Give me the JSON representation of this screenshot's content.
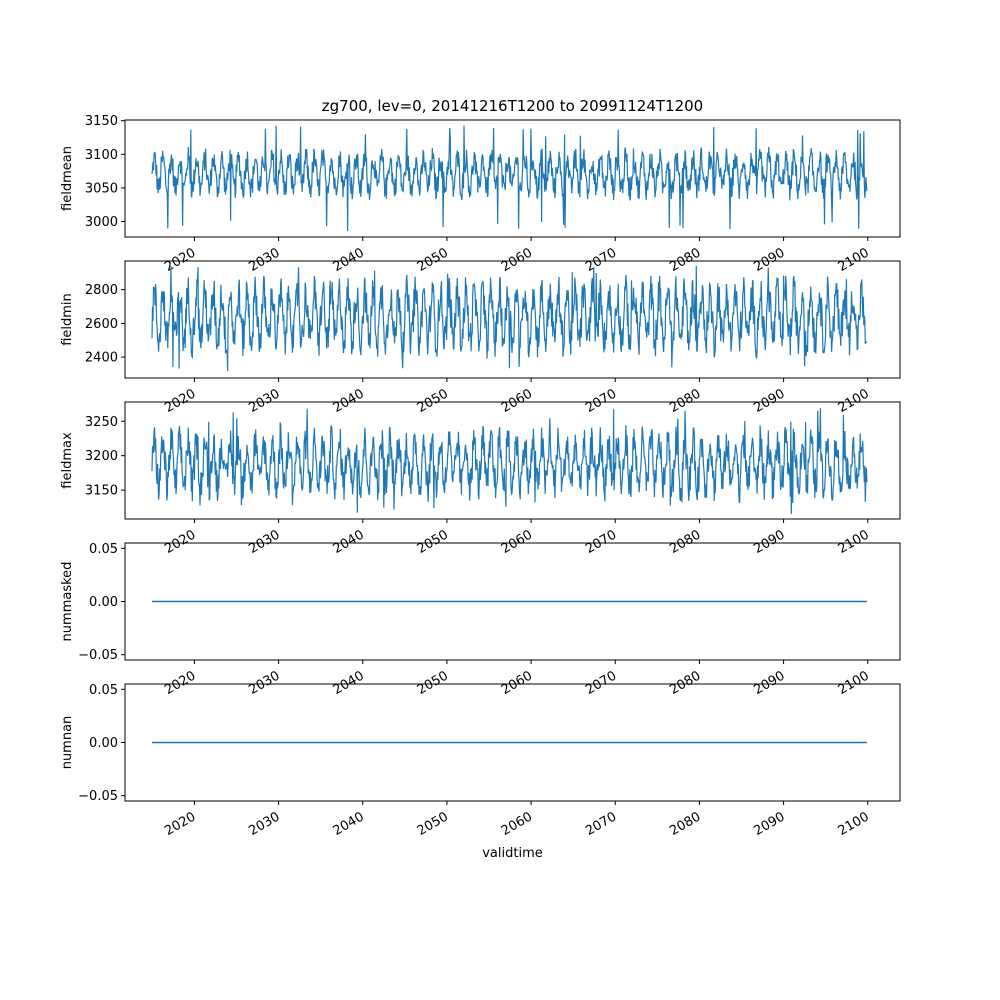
{
  "chart_data": {
    "type": "line",
    "title": "zg700, lev=0, 20141216T1200 to 20991124T1200",
    "xlabel": "validtime",
    "x_range": [
      "2014-12-16",
      "2099-11-24"
    ],
    "xlim": [
      "2011-10-01",
      "2103-11-01"
    ],
    "x_ticks": [
      "2020",
      "2030",
      "2040",
      "2050",
      "2060",
      "2070",
      "2080",
      "2090",
      "2100"
    ],
    "color": "#1f77b4",
    "panels": [
      {
        "name": "fieldmean",
        "ylabel": "fieldmean",
        "ylim": [
          2977,
          3151
        ],
        "y_ticks": [
          3000,
          3050,
          3100,
          3150
        ],
        "baseline": 3070,
        "spread": [
          3030,
          3112
        ],
        "extremes": [
          2985,
          3143
        ]
      },
      {
        "name": "fieldmin",
        "ylabel": "fieldmin",
        "ylim": [
          2276,
          2970
        ],
        "y_ticks": [
          2400,
          2600,
          2800
        ],
        "baseline": 2640,
        "spread": [
          2390,
          2890
        ],
        "extremes": [
          2300,
          2950
        ]
      },
      {
        "name": "fieldmax",
        "ylabel": "fieldmax",
        "ylim": [
          3108,
          3278
        ],
        "y_ticks": [
          3150,
          3200,
          3250
        ],
        "baseline": 3175,
        "spread": [
          3132,
          3245
        ],
        "extremes": [
          3115,
          3270
        ]
      },
      {
        "name": "nummasked",
        "ylabel": "nummasked",
        "ylim": [
          -0.055,
          0.055
        ],
        "y_ticks": [
          "−0.05",
          "0.00",
          "0.05"
        ],
        "y_tick_values": [
          -0.05,
          0,
          0.05
        ],
        "constant": 0
      },
      {
        "name": "numnan",
        "ylabel": "numnan",
        "ylim": [
          -0.055,
          0.055
        ],
        "y_ticks": [
          "−0.05",
          "0.00",
          "0.05"
        ],
        "y_tick_values": [
          -0.05,
          0,
          0.05
        ],
        "constant": 0
      }
    ]
  }
}
